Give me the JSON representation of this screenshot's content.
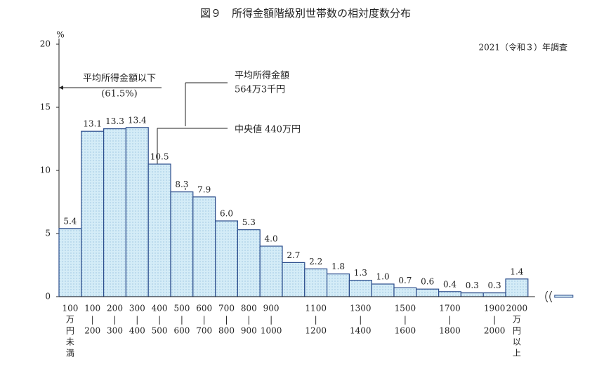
{
  "chart_data": {
    "type": "bar",
    "title": "図９　所得金額階級別世帯数の相対度数分布",
    "subtitle": "2021（令和３）年調査",
    "y_label": "%",
    "categories": [
      [
        "100",
        "万",
        "円",
        "未",
        "満"
      ],
      [
        "100",
        "|",
        "200"
      ],
      [
        "200",
        "|",
        "300"
      ],
      [
        "300",
        "|",
        "400"
      ],
      [
        "400",
        "|",
        "500"
      ],
      [
        "500",
        "|",
        "600"
      ],
      [
        "600",
        "|",
        "700"
      ],
      [
        "700",
        "|",
        "800"
      ],
      [
        "800",
        "|",
        "900"
      ],
      [
        "900",
        "|",
        "1000"
      ],
      null,
      [
        "1100",
        "|",
        "1200"
      ],
      null,
      [
        "1300",
        "|",
        "1400"
      ],
      null,
      [
        "1500",
        "|",
        "1600"
      ],
      null,
      [
        "1700",
        "|",
        "1800"
      ],
      null,
      [
        "1900",
        "|",
        "2000"
      ],
      [
        "2000",
        "万",
        "円",
        "以",
        "上"
      ]
    ],
    "values": [
      5.4,
      13.1,
      13.3,
      13.4,
      10.5,
      8.3,
      7.9,
      6.0,
      5.3,
      4.0,
      2.7,
      2.2,
      1.8,
      1.3,
      1.0,
      0.7,
      0.6,
      0.4,
      0.3,
      0.3,
      1.4
    ],
    "value_labels": [
      "5.4",
      "13.1",
      "13.3",
      "13.4",
      "10.5",
      "8.3",
      "7.9",
      "6.0",
      "5.3",
      "4.0",
      "2.7",
      "2.2",
      "1.8",
      "1.3",
      "1.0",
      "0.7",
      "0.6",
      "0.4",
      "0.3",
      "0.3",
      "1.4"
    ],
    "color": "#d4ecf7",
    "edge_color": "#2b4d8c",
    "ylim": [
      0,
      20
    ],
    "yticks": [
      0,
      5,
      10,
      15,
      20
    ],
    "annotations": {
      "below_mean": "平均所得金額以下",
      "below_mean_share": "(61.5%)",
      "mean": "平均所得金額",
      "mean_value": "564万3千円",
      "median": "中央値 440万円"
    }
  }
}
